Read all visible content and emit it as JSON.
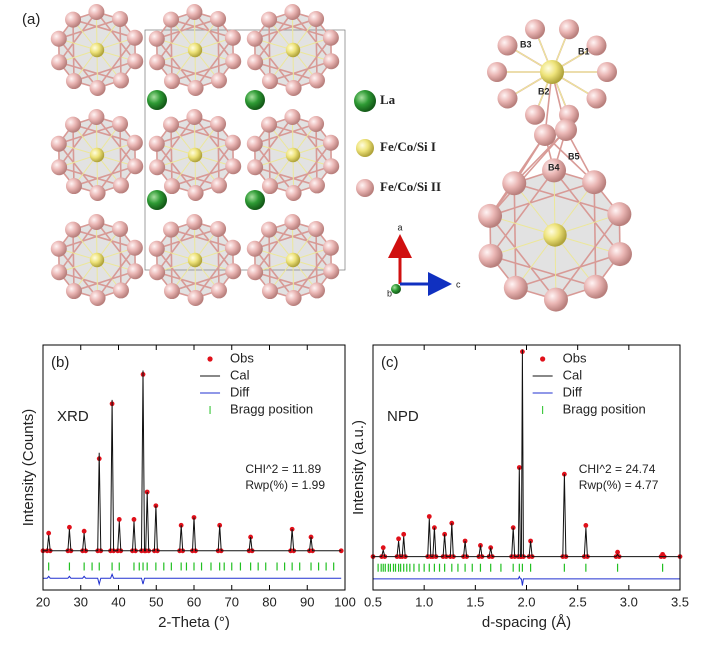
{
  "structure": {
    "panel_label": "(a)",
    "legend": [
      "La",
      "Fe/Co/Si I",
      "Fe/Co/Si II"
    ],
    "axes": [
      "a",
      "b",
      "c"
    ],
    "bonds": [
      "B1",
      "B2",
      "B3",
      "B4",
      "B5"
    ]
  },
  "chart_data": [
    {
      "type": "line",
      "panel_label": "(b)",
      "method": "XRD",
      "annotations": [
        "CHI^2 = 11.89",
        "Rwp(%) = 1.99"
      ],
      "xlabel": "2-Theta (°)",
      "ylabel": "Intensity (Counts)",
      "legend": "upper right",
      "xlim": [
        20,
        100
      ],
      "xticks": [
        20,
        30,
        40,
        50,
        60,
        70,
        80,
        90,
        100
      ],
      "ylim": [
        -15,
        110
      ],
      "x": [
        20,
        21.1,
        21.5,
        21.9,
        26.6,
        27,
        27.4,
        30.5,
        30.9,
        31.3,
        34.5,
        34.9,
        35.3,
        37.9,
        38.3,
        38.7,
        39.8,
        40.2,
        40.6,
        43.7,
        44.1,
        44.5,
        46.1,
        46.5,
        46.9,
        47.2,
        47.6,
        48.0,
        49.5,
        49.9,
        50.3,
        56.2,
        56.6,
        57.0,
        59.6,
        60,
        60.4,
        66.4,
        66.8,
        67.2,
        74.6,
        75,
        75.4,
        85.6,
        86,
        86.4,
        90.6,
        91,
        91.4,
        99
      ],
      "series": [
        {
          "name": "Obs",
          "color": "#e0101a",
          "marker": "dot",
          "values": [
            5,
            5,
            14,
            5,
            5,
            17,
            5,
            5,
            15,
            5,
            5,
            52,
            5,
            5,
            80,
            5,
            5,
            21,
            5,
            5,
            21,
            5,
            5,
            95,
            5,
            5,
            35,
            5,
            5,
            28,
            5,
            5,
            18,
            5,
            5,
            22,
            5,
            5,
            18,
            5,
            5,
            12,
            5,
            5,
            16,
            5,
            5,
            12,
            5,
            5
          ]
        },
        {
          "name": "Cal",
          "color": "#111111",
          "marker": "line",
          "values": [
            5,
            5,
            13,
            5,
            5,
            16,
            5,
            5,
            14,
            5,
            5,
            55,
            5,
            5,
            82,
            5,
            5,
            20,
            5,
            5,
            20,
            5,
            5,
            97,
            5,
            5,
            35,
            5,
            5,
            28,
            5,
            5,
            18,
            5,
            5,
            22,
            5,
            5,
            18,
            5,
            5,
            12,
            5,
            5,
            16,
            5,
            5,
            12,
            5,
            5
          ]
        },
        {
          "name": "Diff",
          "color": "#2030d0",
          "marker": "line",
          "values": [
            -9,
            -9,
            -8,
            -9,
            -9,
            -8,
            -9,
            -9,
            -8,
            -9,
            -9,
            -12,
            -9,
            -9,
            -7,
            -9,
            -9,
            -9,
            -9,
            -9,
            -9,
            -9,
            -9,
            -12,
            -9,
            -9,
            -9,
            -9,
            -9,
            -9,
            -9,
            -9,
            -9,
            -9,
            -9,
            -9,
            -9,
            -9,
            -9,
            -9,
            -9,
            -9,
            -9,
            -9,
            -9,
            -9,
            -9,
            -9,
            -9,
            -9
          ]
        },
        {
          "name": "Bragg position",
          "color": "#22c022",
          "marker": "tick",
          "x": [
            21.5,
            27,
            30.9,
            33,
            34.9,
            38.3,
            40.2,
            44.1,
            45.5,
            46.5,
            47.6,
            49.9,
            52,
            54,
            56.6,
            58,
            60,
            62,
            64.5,
            66.8,
            68,
            70,
            72.3,
            75,
            77,
            79,
            82,
            84,
            86,
            88,
            91,
            93,
            95,
            97
          ],
          "values": [
            -3,
            -3,
            -3,
            -3,
            -3,
            -3,
            -3,
            -3,
            -3,
            -3,
            -3,
            -3,
            -3,
            -3,
            -3,
            -3,
            -3,
            -3,
            -3,
            -3,
            -3,
            -3,
            -3,
            -3,
            -3,
            -3,
            -3,
            -3,
            -3,
            -3,
            -3,
            -3,
            -3,
            -3
          ]
        }
      ]
    },
    {
      "type": "line",
      "panel_label": "(c)",
      "method": "NPD",
      "annotations": [
        "CHI^2 = 24.74",
        "Rwp(%) = 4.77"
      ],
      "xlabel": "d-spacing (Å)",
      "ylabel": "Intensity (a.u.)",
      "legend": "upper right",
      "xlim": [
        0.5,
        3.5
      ],
      "xticks": [
        0.5,
        {
          "value": 1,
          "label": "1.0"
        },
        1.5,
        {
          "value": 2,
          "label": "2.0"
        },
        2.5,
        {
          "value": 3,
          "label": "3.0"
        },
        3.5
      ],
      "ylim": [
        -10,
        100
      ],
      "x": [
        0.5,
        0.585,
        0.6,
        0.615,
        0.735,
        0.75,
        0.765,
        0.785,
        0.8,
        0.815,
        1.035,
        1.05,
        1.065,
        1.085,
        1.1,
        1.115,
        1.185,
        1.2,
        1.215,
        1.255,
        1.27,
        1.285,
        1.385,
        1.4,
        1.415,
        1.535,
        1.55,
        1.565,
        1.635,
        1.65,
        1.665,
        1.855,
        1.87,
        1.885,
        1.92,
        1.93,
        1.94,
        1.95,
        1.96,
        1.97,
        2.025,
        2.04,
        2.055,
        2.355,
        2.37,
        2.385,
        2.565,
        2.58,
        2.595,
        2.875,
        2.89,
        2.905,
        3.315,
        3.33,
        3.345,
        3.5
      ],
      "series": [
        {
          "name": "Obs",
          "color": "#e0101a",
          "marker": "dot",
          "values": [
            5,
            5,
            9,
            5,
            5,
            13,
            5,
            5,
            15,
            5,
            5,
            23,
            5,
            5,
            18,
            5,
            5,
            15,
            5,
            5,
            20,
            5,
            5,
            12,
            5,
            5,
            10,
            5,
            5,
            9,
            5,
            5,
            18,
            5,
            5,
            45,
            5,
            5,
            97,
            5,
            5,
            12,
            5,
            5,
            42,
            5,
            5,
            19,
            5,
            5,
            7,
            5,
            5,
            6,
            5,
            5
          ]
        },
        {
          "name": "Cal",
          "color": "#111111",
          "marker": "line",
          "values": [
            5,
            5,
            8,
            5,
            5,
            12,
            5,
            5,
            14,
            5,
            5,
            22,
            5,
            5,
            18,
            5,
            5,
            15,
            5,
            5,
            20,
            5,
            5,
            12,
            5,
            5,
            10,
            5,
            5,
            9,
            5,
            5,
            18,
            5,
            5,
            45,
            5,
            5,
            98,
            5,
            5,
            12,
            5,
            5,
            42,
            5,
            5,
            18,
            5,
            5,
            6,
            5,
            5,
            5,
            5,
            5
          ]
        },
        {
          "name": "Diff",
          "color": "#2030d0",
          "marker": "line",
          "values": [
            -5,
            -5,
            -5,
            -5,
            -5,
            -5,
            -5,
            -5,
            -5,
            -5,
            -5,
            -5,
            -5,
            -5,
            -5,
            -5,
            -5,
            -5,
            -5,
            -5,
            -5,
            -5,
            -5,
            -5,
            -5,
            -5,
            -5,
            -5,
            -5,
            -5,
            -5,
            -5,
            -5,
            -5,
            -5,
            -4,
            -5,
            -5,
            -8,
            -5,
            -5,
            -5,
            -5,
            -5,
            -5,
            -5,
            -5,
            -5,
            -5,
            -5,
            -5,
            -5,
            -5,
            -5,
            -5,
            -5
          ]
        },
        {
          "name": "Bragg position",
          "color": "#22c022",
          "marker": "tick",
          "x": [
            0.55,
            0.58,
            0.6,
            0.62,
            0.65,
            0.67,
            0.7,
            0.72,
            0.75,
            0.77,
            0.8,
            0.83,
            0.86,
            0.9,
            0.95,
            1.0,
            1.05,
            1.1,
            1.15,
            1.2,
            1.27,
            1.33,
            1.4,
            1.47,
            1.55,
            1.65,
            1.75,
            1.87,
            1.93,
            1.96,
            2.04,
            2.37,
            2.58,
            2.89,
            3.33
          ],
          "values": [
            0,
            0,
            0,
            0,
            0,
            0,
            0,
            0,
            0,
            0,
            0,
            0,
            0,
            0,
            0,
            0,
            0,
            0,
            0,
            0,
            0,
            0,
            0,
            0,
            0,
            0,
            0,
            0,
            0,
            0,
            0,
            0,
            0,
            0,
            0
          ]
        }
      ]
    }
  ]
}
